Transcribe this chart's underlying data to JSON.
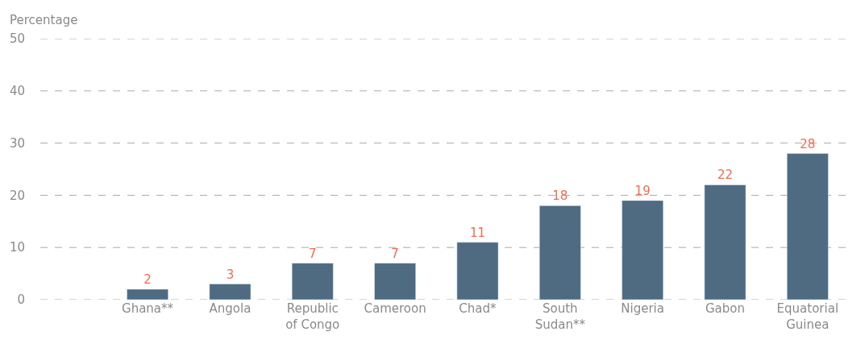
{
  "chart_data": {
    "type": "bar",
    "ylabel": "Percentage",
    "categories": [
      "Ghana**",
      "Angola",
      "Republic\nof Congo",
      "Cameroon",
      "Chad*",
      "South\nSudan**",
      "Nigeria",
      "Gabon",
      "Equatorial\nGuinea"
    ],
    "values": [
      2,
      3,
      7,
      7,
      11,
      18,
      19,
      22,
      28
    ],
    "color": "#4e6b82",
    "ylim": [
      0,
      50
    ],
    "yticks": [
      0,
      10,
      20,
      30,
      40,
      50
    ],
    "grid": "y",
    "data_labels": true,
    "legend": false
  }
}
